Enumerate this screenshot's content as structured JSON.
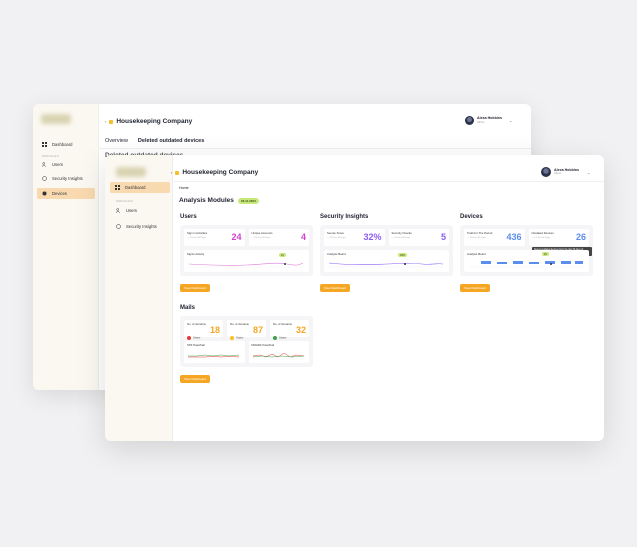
{
  "back_window": {
    "company": "Housekeeping Company",
    "tabs": [
      {
        "label": "Overview",
        "active": false
      },
      {
        "label": "Deleted outdated devices",
        "active": true
      }
    ],
    "subtitle": "Deleted outdated devices",
    "user": {
      "name": "Alexa Hobbins",
      "role": "Admin"
    },
    "sidebar": {
      "top": "Dashboard",
      "section": "MODULES",
      "items": [
        {
          "label": "Users",
          "icon": "users-icon",
          "active": false
        },
        {
          "label": "Security Insights",
          "icon": "shield-icon",
          "active": false
        },
        {
          "label": "Devices",
          "icon": "device-icon",
          "active": true
        }
      ]
    }
  },
  "front_window": {
    "company": "Housekeeping Company",
    "user": {
      "name": "Alexa Hobbins",
      "role": "Admin"
    },
    "sidebar": {
      "top": "Dashboard",
      "section": "MODULES",
      "items": [
        {
          "label": "Users",
          "icon": "users-icon"
        },
        {
          "label": "Security Insights",
          "icon": "shield-icon"
        }
      ]
    },
    "breadcrumb": "Home",
    "title": "Analysis Modules",
    "date_badge": "03.11.2023",
    "users": {
      "title": "Users",
      "stats": [
        {
          "label": "Sign in Activities",
          "hint": "— 2% last 30 Days",
          "value": "24",
          "color": "#d63fd6"
        },
        {
          "label": "Unique Accounts",
          "hint": "— 2% last 30 Days",
          "value": "4",
          "color": "#d63fd6"
        }
      ],
      "chart_label": "Signin Activity",
      "chart_pill": "24",
      "button": "View Dashboard"
    },
    "security": {
      "title": "Security Insights",
      "stats": [
        {
          "label": "Secure Score",
          "hint": "— 4% last 30 Days",
          "value": "32%",
          "color": "#8b5cf6"
        },
        {
          "label": "Security Checks",
          "hint": "— 2% last 30 Days",
          "value": "5",
          "color": "#8b5cf6"
        }
      ],
      "chart_label": "Analysis Board",
      "chart_pill": "32%",
      "button": "View Dashboard"
    },
    "devices": {
      "title": "Devices",
      "stats": [
        {
          "label": "Total For The Period",
          "hint": "— 1% last 30 Days",
          "value": "436",
          "color": "#5b8def"
        },
        {
          "label": "Outdated Devices",
          "hint": "— 1% last 30 Days",
          "value": "26",
          "color": "#5b8def"
        }
      ],
      "tooltip": "Detect outdated devices from the last 30 days of inventory",
      "chart_label": "Analysis Board",
      "chart_pill": "26",
      "button": "View Dashboard"
    },
    "mails": {
      "title": "Mails",
      "stats": [
        {
          "label": "No. of domains",
          "status": "Status",
          "value": "18",
          "dot": "#e53935",
          "color": "#f5a623"
        },
        {
          "label": "No. of domains",
          "status": "Status",
          "value": "87",
          "dot": "#f4c026",
          "color": "#f5a623"
        },
        {
          "label": "No. of domains",
          "status": "Status",
          "value": "32",
          "dot": "#43a047",
          "color": "#f5a623"
        }
      ],
      "charts": [
        "SPF Pass/Fail",
        "DMARC Pass/Fail"
      ],
      "button": "View Dashboard"
    }
  }
}
